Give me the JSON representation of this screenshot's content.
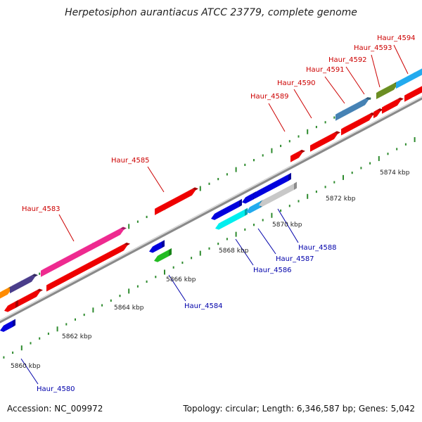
{
  "title": "Herpetosiphon aurantiacus ATCC 23779, complete genome",
  "footer": {
    "accession": "Accession: NC_009972",
    "topology": "Topology: circular; Length: 6,346,587 bp; Genes: 5,042"
  },
  "colors": {
    "forward_label": "#cc0000",
    "reverse_label": "#0000aa",
    "backbone": "#999999",
    "tick": "#2e8b2e"
  },
  "kbp_labels": [
    "5860 kbp",
    "5862 kbp",
    "5864 kbp",
    "5866 kbp",
    "5868 kbp",
    "5870 kbp",
    "5872 kbp",
    "5874 kbp"
  ],
  "forward_genes": [
    "Haur_4583",
    "Haur_4585",
    "Haur_4589",
    "Haur_4590",
    "Haur_4591",
    "Haur_4592",
    "Haur_4593",
    "Haur_4594"
  ],
  "reverse_genes": [
    "Haur_4580",
    "Haur_4584",
    "Haur_4586",
    "Haur_4587",
    "Haur_4588"
  ]
}
